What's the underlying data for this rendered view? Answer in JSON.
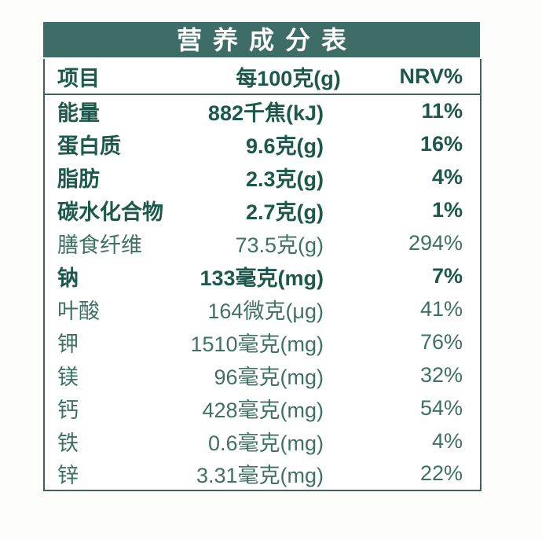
{
  "title": "营养成分表",
  "table": {
    "headers": {
      "item": "项目",
      "amount": "每100克(g)",
      "nrv": "NRV%"
    },
    "rows": [
      {
        "name": "能量",
        "value": "882千焦(kJ)",
        "nrv": "11%",
        "bold": true
      },
      {
        "name": "蛋白质",
        "value": "9.6克(g)",
        "nrv": "16%",
        "bold": true
      },
      {
        "name": "脂肪",
        "value": "2.3克(g)",
        "nrv": "4%",
        "bold": true
      },
      {
        "name": "碳水化合物",
        "value": "2.7克(g)",
        "nrv": "1%",
        "bold": true
      },
      {
        "name": "膳食纤维",
        "value": "73.5克(g)",
        "nrv": "294%",
        "bold": false
      },
      {
        "name": "钠",
        "value": "133毫克(mg)",
        "nrv": "7%",
        "bold": true
      },
      {
        "name": "叶酸",
        "value": "164微克(μg)",
        "nrv": "41%",
        "bold": false
      },
      {
        "name": "钾",
        "value": "1510毫克(mg)",
        "nrv": "76%",
        "bold": false
      },
      {
        "name": "镁",
        "value": "96毫克(mg)",
        "nrv": "32%",
        "bold": false
      },
      {
        "name": "钙",
        "value": "428毫克(mg)",
        "nrv": "54%",
        "bold": false
      },
      {
        "name": "铁",
        "value": "0.6毫克(mg)",
        "nrv": "4%",
        "bold": false
      },
      {
        "name": "锌",
        "value": "3.31毫克(mg)",
        "nrv": "22%",
        "bold": false
      }
    ]
  },
  "colors": {
    "header_bg": "#3e6c67",
    "text_bold": "#1c584c",
    "text_regular": "#3f7065",
    "border": "#44605b",
    "background": "#fdfdfc"
  }
}
